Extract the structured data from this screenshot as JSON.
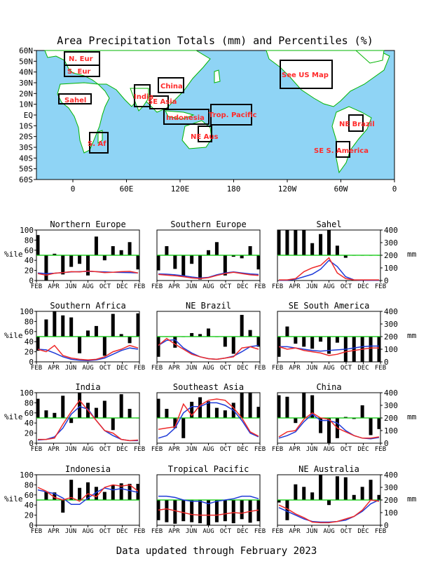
{
  "title": "Area Precipitation Totals (mm) and Percentiles (%)",
  "footer": "Data updated through February 2023",
  "colors": {
    "ocean": "#8fd4f5",
    "land": "#ffffff",
    "coast": "#00b400",
    "region_label": "#ff2a2a",
    "percentile_bar": "#000000",
    "reference_line": "#00c800",
    "observed_line": "#ee2a2a",
    "normal_line": "#1e3ad8"
  },
  "map": {
    "lat_labels": [
      "60N",
      "50N",
      "40N",
      "30N",
      "20N",
      "10N",
      "EQ",
      "10S",
      "20S",
      "30S",
      "40S",
      "50S",
      "60S"
    ],
    "lon_labels": [
      "0",
      "60E",
      "120E",
      "180",
      "120W",
      "60W",
      "0"
    ],
    "regions": [
      {
        "id": "n-eur",
        "label": "N. Eur"
      },
      {
        "id": "s-eur",
        "label": "S. Eur"
      },
      {
        "id": "sahel",
        "label": "Sahel"
      },
      {
        "id": "s-af",
        "label": "S. Af"
      },
      {
        "id": "india",
        "label": "India"
      },
      {
        "id": "se-asia",
        "label": "SE Asia"
      },
      {
        "id": "china",
        "label": "China"
      },
      {
        "id": "indonesia",
        "label": "Indonesia"
      },
      {
        "id": "trop-pacific",
        "label": "Trop. Pacific"
      },
      {
        "id": "ne-aus",
        "label": "NE Aus"
      },
      {
        "id": "us",
        "label": "See US Map"
      },
      {
        "id": "ne-brazil",
        "label": "NE Brazil"
      },
      {
        "id": "se-s-america",
        "label": "SE S. America"
      }
    ]
  },
  "axes": {
    "month_ticks": [
      "FEB",
      "APR",
      "JUN",
      "AUG",
      "OCT",
      "DEC",
      "FEB"
    ],
    "left_ticks": [
      "0",
      "20",
      "40",
      "60",
      "80",
      "100"
    ],
    "left_label": "%ile",
    "right_ticks": [
      "0",
      "100",
      "200",
      "300",
      "400"
    ],
    "right_label": "mm"
  },
  "chart_data": [
    {
      "type": "bar",
      "title": "Northern Europe",
      "ylim": [
        0,
        100
      ],
      "y2lim": [
        0,
        400
      ],
      "reference": 50,
      "percentiles": [
        90,
        0,
        53,
        12,
        27,
        33,
        10,
        87,
        40,
        68,
        60,
        76,
        22
      ],
      "observed": [
        55,
        42,
        58,
        62,
        70,
        68,
        75,
        70,
        62,
        65,
        70,
        72,
        60
      ],
      "normal": [
        60,
        55,
        58,
        62,
        68,
        70,
        72,
        70,
        68,
        65,
        64,
        62,
        60
      ]
    },
    {
      "type": "bar",
      "title": "Southern Europe",
      "ylim": [
        0,
        100
      ],
      "y2lim": [
        0,
        400
      ],
      "reference": 50,
      "percentiles": [
        20,
        68,
        23,
        8,
        33,
        2,
        60,
        76,
        10,
        47,
        44,
        68,
        22
      ],
      "observed": [
        48,
        42,
        38,
        30,
        20,
        15,
        22,
        40,
        55,
        65,
        55,
        45,
        40
      ],
      "normal": [
        52,
        50,
        45,
        38,
        28,
        20,
        25,
        45,
        60,
        68,
        60,
        52,
        48
      ]
    },
    {
      "type": "bar",
      "title": "Sahel",
      "ylim": [
        0,
        100
      ],
      "y2lim": [
        0,
        400
      ],
      "reference": 50,
      "percentiles": [
        100,
        100,
        100,
        100,
        74,
        92,
        100,
        69,
        45,
        50,
        50,
        50,
        50
      ],
      "observed": [
        5,
        5,
        15,
        70,
        100,
        120,
        180,
        60,
        15,
        5,
        5,
        5,
        5
      ],
      "normal": [
        2,
        2,
        10,
        30,
        50,
        90,
        160,
        110,
        30,
        5,
        2,
        2,
        2
      ]
    },
    {
      "type": "bar",
      "title": "Southern Africa",
      "ylim": [
        0,
        100
      ],
      "y2lim": [
        0,
        400
      ],
      "reference": 50,
      "percentiles": [
        22,
        84,
        100,
        92,
        88,
        17,
        62,
        71,
        12,
        95,
        55,
        37,
        96
      ],
      "observed": [
        100,
        80,
        130,
        50,
        30,
        20,
        15,
        20,
        40,
        80,
        100,
        130,
        110
      ],
      "normal": [
        100,
        95,
        70,
        40,
        20,
        12,
        10,
        15,
        30,
        60,
        90,
        110,
        100
      ]
    },
    {
      "type": "bar",
      "title": "NE Brazil",
      "ylim": [
        0,
        100
      ],
      "y2lim": [
        0,
        400
      ],
      "reference": 50,
      "percentiles": [
        10,
        50,
        28,
        50,
        57,
        55,
        66,
        50,
        30,
        16,
        93,
        63,
        30
      ],
      "observed": [
        130,
        185,
        140,
        100,
        60,
        40,
        25,
        20,
        30,
        40,
        110,
        120,
        100
      ],
      "normal": [
        130,
        170,
        175,
        110,
        70,
        40,
        25,
        20,
        30,
        45,
        80,
        120,
        130
      ]
    },
    {
      "type": "bar",
      "title": "SE South America",
      "ylim": [
        0,
        100
      ],
      "y2lim": [
        0,
        400
      ],
      "reference": 50,
      "percentiles": [
        10,
        70,
        36,
        30,
        26,
        40,
        16,
        38,
        0,
        0,
        0,
        0,
        0
      ],
      "observed": [
        120,
        100,
        110,
        90,
        80,
        70,
        50,
        60,
        80,
        90,
        100,
        110,
        110
      ],
      "normal": [
        120,
        120,
        110,
        100,
        90,
        85,
        90,
        95,
        100,
        110,
        120,
        125,
        125
      ]
    },
    {
      "type": "bar",
      "title": "India",
      "ylim": [
        0,
        100
      ],
      "y2lim": [
        0,
        400
      ],
      "reference": 50,
      "percentiles": [
        88,
        65,
        60,
        94,
        40,
        100,
        80,
        70,
        84,
        26,
        97,
        68,
        50
      ],
      "observed": [
        30,
        30,
        40,
        150,
        250,
        340,
        260,
        180,
        100,
        80,
        30,
        20,
        25
      ],
      "normal": [
        25,
        30,
        50,
        120,
        230,
        290,
        270,
        180,
        100,
        60,
        30,
        20,
        20
      ]
    },
    {
      "type": "bar",
      "title": "Southeast Asia",
      "ylim": [
        0,
        100
      ],
      "y2lim": [
        0,
        400
      ],
      "reference": 50,
      "percentiles": [
        88,
        68,
        30,
        10,
        82,
        91,
        83,
        70,
        65,
        80,
        100,
        100,
        72
      ],
      "observed": [
        110,
        120,
        130,
        310,
        220,
        300,
        340,
        350,
        340,
        280,
        200,
        90,
        55
      ],
      "normal": [
        40,
        60,
        120,
        240,
        290,
        290,
        320,
        320,
        300,
        260,
        180,
        80,
        50
      ]
    },
    {
      "type": "bar",
      "title": "China",
      "ylim": [
        0,
        100
      ],
      "y2lim": [
        0,
        400
      ],
      "reference": 50,
      "percentiles": [
        95,
        92,
        40,
        100,
        95,
        20,
        0,
        10,
        52,
        48,
        75,
        16,
        28
      ],
      "observed": [
        50,
        90,
        100,
        190,
        240,
        200,
        190,
        120,
        90,
        60,
        40,
        40,
        50
      ],
      "normal": [
        40,
        60,
        90,
        170,
        230,
        180,
        180,
        160,
        100,
        60,
        40,
        35,
        45
      ]
    },
    {
      "type": "bar",
      "title": "Indonesia",
      "ylim": [
        0,
        100
      ],
      "y2lim": [
        0,
        400
      ],
      "reference": 50,
      "percentiles": [
        50,
        67,
        65,
        25,
        90,
        74,
        85,
        76,
        66,
        80,
        83,
        82,
        82
      ],
      "observed": [
        300,
        270,
        220,
        200,
        220,
        190,
        250,
        225,
        300,
        320,
        310,
        320,
        270
      ],
      "normal": [
        280,
        265,
        250,
        215,
        165,
        165,
        215,
        260,
        295,
        280,
        290,
        275,
        260
      ]
    },
    {
      "type": "bar",
      "title": "Tropical Pacific",
      "ylim": [
        0,
        100
      ],
      "y2lim": [
        0,
        400
      ],
      "reference": 50,
      "percentiles": [
        10,
        6,
        3,
        8,
        6,
        4,
        0,
        6,
        8,
        4,
        12,
        5,
        8
      ],
      "observed": [
        120,
        130,
        115,
        100,
        85,
        80,
        80,
        80,
        90,
        100,
        95,
        110,
        120
      ],
      "normal": [
        230,
        230,
        220,
        200,
        190,
        190,
        170,
        190,
        200,
        210,
        230,
        230,
        210
      ]
    },
    {
      "type": "bar",
      "title": "NE Australia",
      "ylim": [
        0,
        100
      ],
      "y2lim": [
        0,
        400
      ],
      "reference": 50,
      "percentiles": [
        45,
        10,
        81,
        76,
        65,
        100,
        40,
        97,
        95,
        60,
        76,
        90,
        60
      ],
      "observed": [
        160,
        130,
        90,
        60,
        25,
        20,
        20,
        30,
        50,
        70,
        120,
        200,
        190
      ],
      "normal": [
        140,
        110,
        80,
        50,
        30,
        25,
        25,
        30,
        40,
        70,
        110,
        170,
        200
      ]
    }
  ]
}
